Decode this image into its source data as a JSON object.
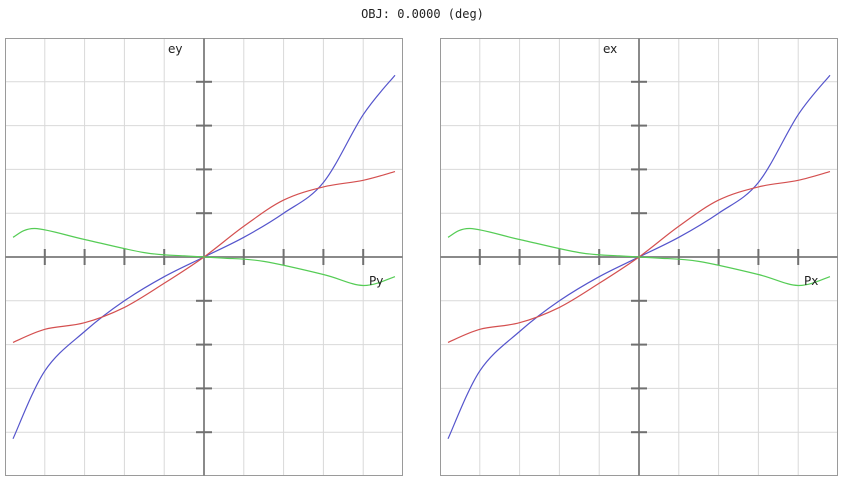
{
  "title": "OBJ: 0.0000 (deg)",
  "colors": {
    "blue": "#5555cc",
    "red": "#d45050",
    "green": "#55cc55"
  },
  "chart_data": [
    {
      "type": "line",
      "ylabel": "ey",
      "xlabel": "Py",
      "xlim": [
        -1,
        1
      ],
      "ylim": [
        -1,
        1
      ],
      "grid": true,
      "series": [
        {
          "color": "#5555cc",
          "x": [
            -0.96,
            -0.8,
            -0.6,
            -0.4,
            -0.2,
            0,
            0.2,
            0.4,
            0.6,
            0.8,
            0.96
          ],
          "y": [
            -0.83,
            -0.52,
            -0.34,
            -0.2,
            -0.09,
            0,
            0.09,
            0.2,
            0.34,
            0.65,
            0.83
          ]
        },
        {
          "color": "#d45050",
          "x": [
            -0.96,
            -0.8,
            -0.6,
            -0.4,
            -0.2,
            0,
            0.2,
            0.4,
            0.6,
            0.8,
            0.96
          ],
          "y": [
            -0.39,
            -0.33,
            -0.3,
            -0.23,
            -0.12,
            0,
            0.14,
            0.26,
            0.32,
            0.35,
            0.39
          ]
        },
        {
          "color": "#55cc55",
          "x": [
            -0.96,
            -0.85,
            -0.6,
            -0.3,
            -0.1,
            0,
            0.1,
            0.3,
            0.6,
            0.8,
            0.96
          ],
          "y": [
            0.09,
            0.13,
            0.08,
            0.02,
            0.005,
            0,
            -0.005,
            -0.02,
            -0.08,
            -0.13,
            -0.09
          ]
        }
      ]
    },
    {
      "type": "line",
      "ylabel": "ex",
      "xlabel": "Px",
      "xlim": [
        -1,
        1
      ],
      "ylim": [
        -1,
        1
      ],
      "grid": true,
      "series": [
        {
          "color": "#5555cc",
          "x": [
            -0.96,
            -0.8,
            -0.6,
            -0.4,
            -0.2,
            0,
            0.2,
            0.4,
            0.6,
            0.8,
            0.96
          ],
          "y": [
            -0.83,
            -0.52,
            -0.34,
            -0.2,
            -0.09,
            0,
            0.09,
            0.2,
            0.34,
            0.65,
            0.83
          ]
        },
        {
          "color": "#d45050",
          "x": [
            -0.96,
            -0.8,
            -0.6,
            -0.4,
            -0.2,
            0,
            0.2,
            0.4,
            0.6,
            0.8,
            0.96
          ],
          "y": [
            -0.39,
            -0.33,
            -0.3,
            -0.23,
            -0.12,
            0,
            0.14,
            0.26,
            0.32,
            0.35,
            0.39
          ]
        },
        {
          "color": "#55cc55",
          "x": [
            -0.96,
            -0.85,
            -0.6,
            -0.3,
            -0.1,
            0,
            0.1,
            0.3,
            0.6,
            0.8,
            0.96
          ],
          "y": [
            0.09,
            0.13,
            0.08,
            0.02,
            0.005,
            0,
            -0.005,
            -0.02,
            -0.08,
            -0.13,
            -0.09
          ]
        }
      ]
    }
  ]
}
